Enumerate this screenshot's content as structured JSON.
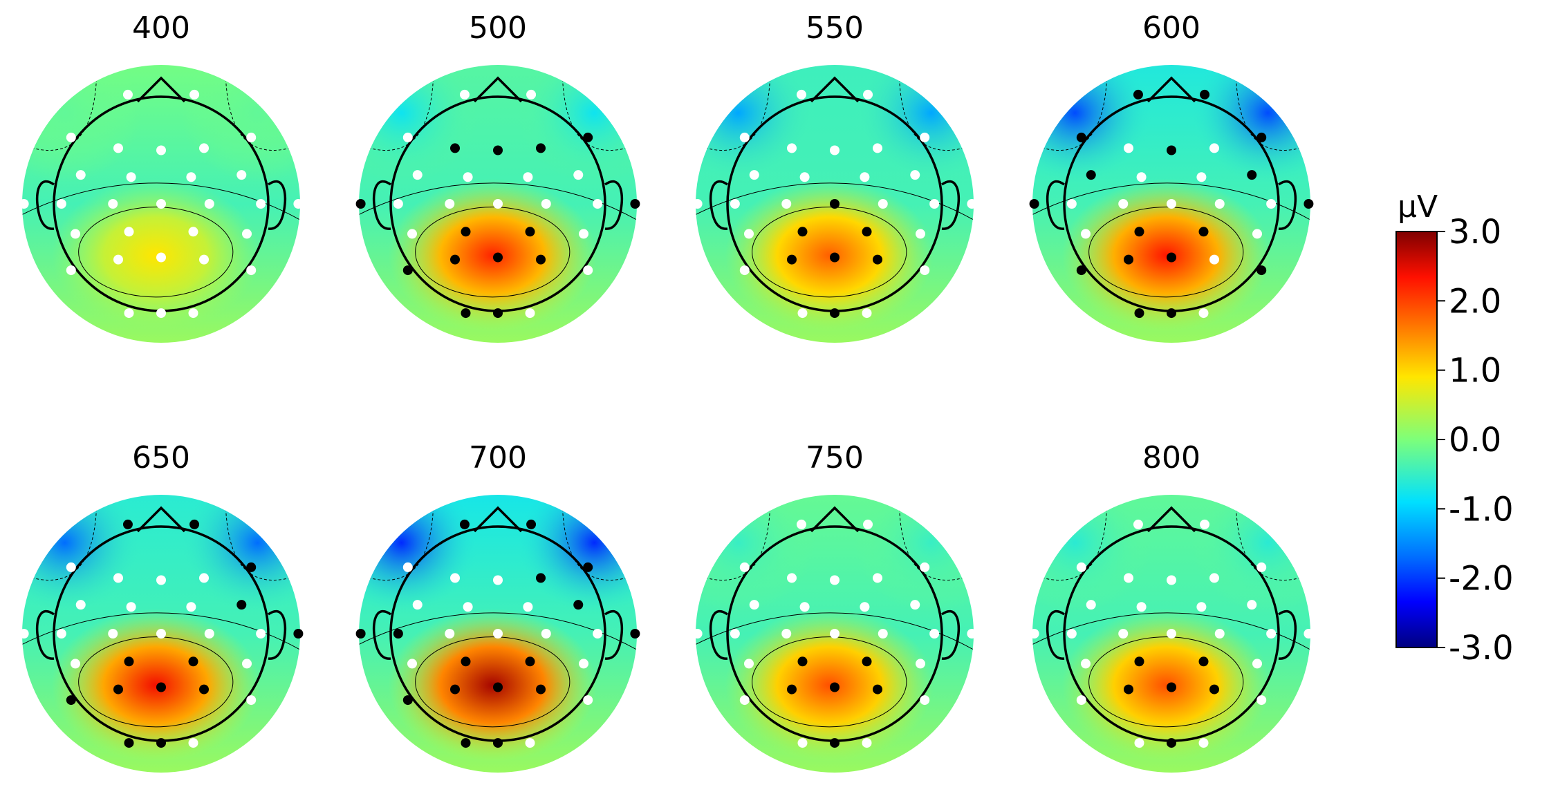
{
  "chart_data": {
    "type": "heatmap",
    "subtype": "topographic scalp maps",
    "colormap": "jet",
    "value_range": [
      -3.0,
      3.0
    ],
    "panels": [
      {
        "title": "400",
        "hot": 0.9,
        "red_band": 0.0,
        "frontal": -0.2
      },
      {
        "title": "500",
        "hot": 2.2,
        "red_band": 0.0,
        "frontal": -0.8
      },
      {
        "title": "550",
        "hot": 1.8,
        "red_band": 0.0,
        "frontal": -1.3
      },
      {
        "title": "600",
        "hot": 2.3,
        "red_band": 0.0,
        "frontal": -1.9
      },
      {
        "title": "650",
        "hot": 2.4,
        "red_band": 0.0,
        "frontal": -1.7
      },
      {
        "title": "700",
        "hot": 2.8,
        "red_band": 0.0,
        "frontal": -2.1
      },
      {
        "title": "750",
        "hot": 1.9,
        "red_band": 0.0,
        "frontal": -0.5
      },
      {
        "title": "800",
        "hot": 1.9,
        "red_band": 0.0,
        "frontal": -0.6
      }
    ],
    "colorbar": {
      "unit": "μV",
      "ticks": [
        "3.0",
        "2.0",
        "1.0",
        "0.0",
        "-1.0",
        "-2.0",
        "-3.0"
      ]
    }
  }
}
